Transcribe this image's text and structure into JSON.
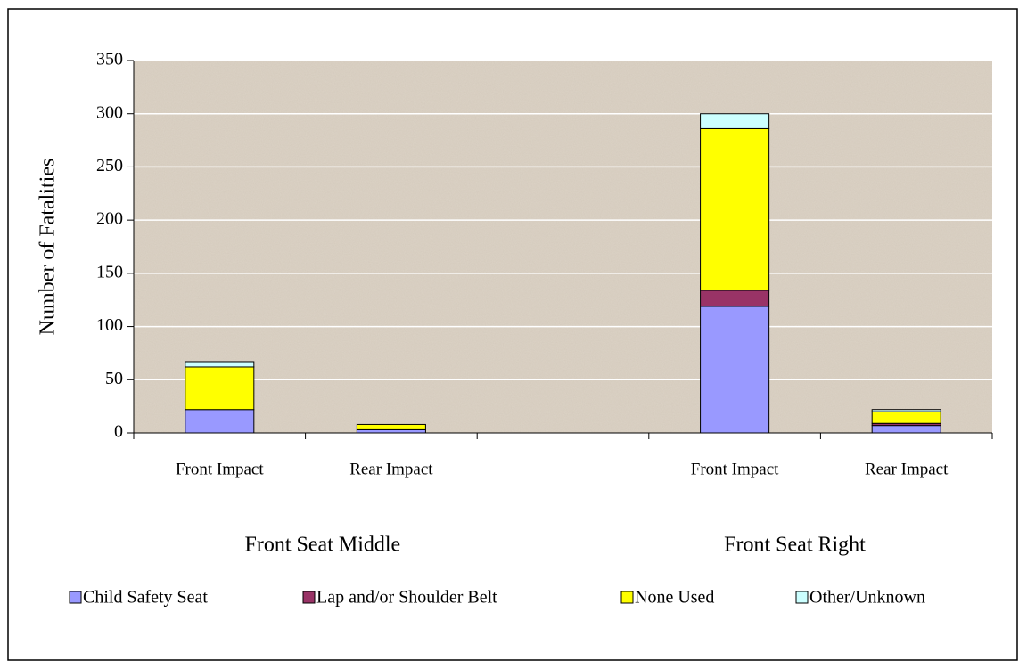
{
  "chart_data": {
    "type": "stacked_bar",
    "y_label": "Number of Fatalities",
    "categories": [
      "Front Impact",
      "Rear Impact",
      null,
      "Front Impact",
      "Rear Impact"
    ],
    "groups": [
      "Front Seat Middle",
      "Front Seat Right"
    ],
    "series": [
      {
        "name": "Child Safety Seat",
        "color": "#9999ff",
        "values": [
          22,
          3,
          null,
          119,
          7
        ]
      },
      {
        "name": "Lap and/or Shoulder Belt",
        "color": "#993366",
        "values": [
          0,
          0,
          null,
          15,
          2
        ]
      },
      {
        "name": "None Used",
        "color": "#ffff00",
        "values": [
          40,
          5,
          null,
          152,
          11
        ]
      },
      {
        "name": "Other/Unknown",
        "color": "#ccffff",
        "values": [
          5,
          0,
          null,
          14,
          2
        ]
      }
    ],
    "ylim": [
      0,
      350
    ],
    "yticks": [
      0,
      50,
      100,
      150,
      200,
      250,
      300,
      350
    ],
    "grid": true
  }
}
